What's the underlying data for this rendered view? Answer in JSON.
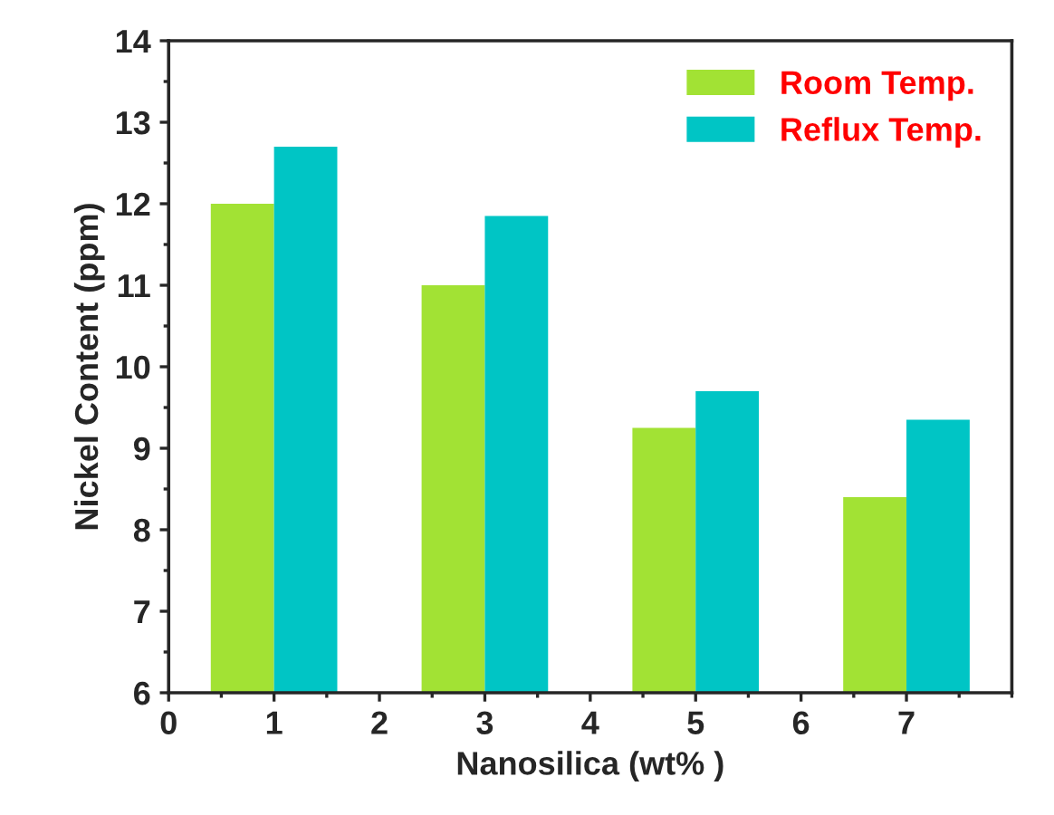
{
  "chart_data": {
    "type": "bar",
    "xlabel": "Nanosilica (wt% )",
    "ylabel": "Nickel Content (ppm)",
    "x": [
      1,
      3,
      5,
      7
    ],
    "series": [
      {
        "name": "Room Temp.",
        "color": "#a2e234",
        "values": [
          12.0,
          11.0,
          9.25,
          8.4
        ]
      },
      {
        "name": "Reflux Temp.",
        "color": "#00c5c5",
        "values": [
          12.7,
          11.85,
          9.7,
          9.35
        ]
      }
    ],
    "xlim": [
      0,
      8
    ],
    "xticks": [
      0,
      1,
      2,
      3,
      4,
      5,
      6,
      7
    ],
    "ylim": [
      6,
      14
    ],
    "yticks": [
      6,
      7,
      8,
      9,
      10,
      11,
      12,
      13,
      14
    ],
    "grid": false,
    "legend": "top right"
  }
}
